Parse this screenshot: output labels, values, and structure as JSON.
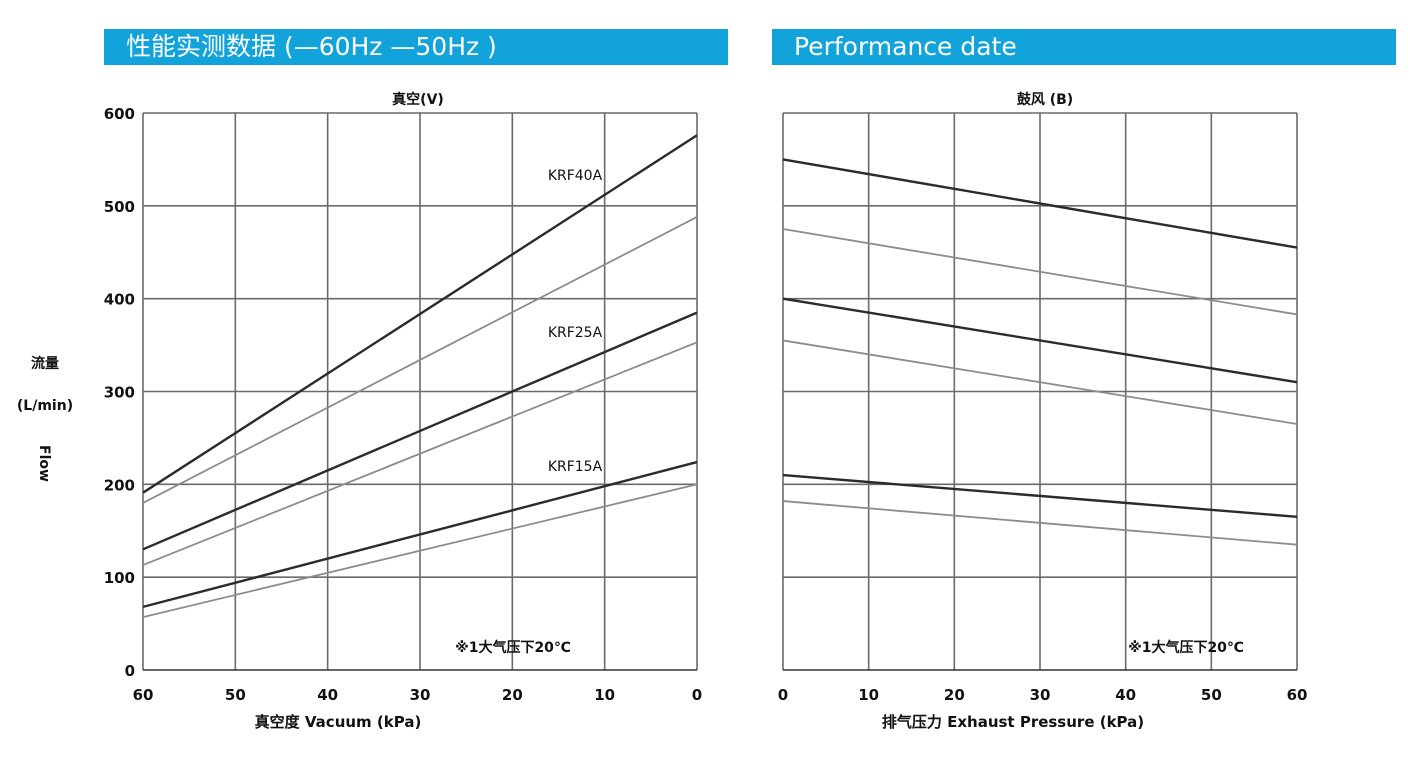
{
  "headers": {
    "left": "性能实测数据 (—60Hz —50Hz )",
    "right": "Performance date"
  },
  "chart_data": [
    {
      "type": "line",
      "title": "真空(V)",
      "xlabel": "真空度 Vacuum (kPa)",
      "ylabel_cn": "流量",
      "ylabel_unit": "(L/min)",
      "ylabel_en": "Flow",
      "x_ticks": [
        60,
        50,
        40,
        30,
        20,
        10,
        0
      ],
      "y_ticks": [
        0,
        100,
        200,
        300,
        400,
        500,
        600
      ],
      "xlim": [
        60,
        0
      ],
      "ylim": [
        0,
        600
      ],
      "grid": true,
      "note": "※1大气压下20℃",
      "series": [
        {
          "name": "KRF40A",
          "label": "KRF40A",
          "shade": "dark",
          "x": [
            60,
            0
          ],
          "y": [
            191,
            576
          ]
        },
        {
          "shade": "light",
          "x": [
            60,
            0
          ],
          "y": [
            180,
            488
          ]
        },
        {
          "name": "KRF25A",
          "label": "KRF25A",
          "shade": "dark",
          "x": [
            60,
            0
          ],
          "y": [
            130,
            385
          ]
        },
        {
          "shade": "light",
          "x": [
            60,
            0
          ],
          "y": [
            113,
            353
          ]
        },
        {
          "name": "KRF15A",
          "label": "KRF15A",
          "shade": "dark",
          "x": [
            60,
            0
          ],
          "y": [
            68,
            224
          ]
        },
        {
          "shade": "light",
          "x": [
            60,
            0
          ],
          "y": [
            57,
            200
          ]
        }
      ]
    },
    {
      "type": "line",
      "title": "鼓风 (B)",
      "xlabel": "排气压力 Exhaust Pressure (kPa)",
      "x_ticks": [
        0,
        10,
        20,
        30,
        40,
        50,
        60
      ],
      "y_ticks": [
        0,
        100,
        200,
        300,
        400,
        500,
        600
      ],
      "xlim": [
        0,
        60
      ],
      "ylim": [
        0,
        600
      ],
      "grid": true,
      "note": "※1大气压下20℃",
      "series": [
        {
          "shade": "dark",
          "x": [
            0,
            60
          ],
          "y": [
            550,
            455
          ]
        },
        {
          "shade": "light",
          "x": [
            0,
            60
          ],
          "y": [
            475,
            383
          ]
        },
        {
          "shade": "dark",
          "x": [
            0,
            60
          ],
          "y": [
            400,
            310
          ]
        },
        {
          "shade": "light",
          "x": [
            0,
            60
          ],
          "y": [
            355,
            265
          ]
        },
        {
          "shade": "dark",
          "x": [
            0,
            60
          ],
          "y": [
            210,
            165
          ]
        },
        {
          "shade": "light",
          "x": [
            0,
            60
          ],
          "y": [
            182,
            135
          ]
        }
      ]
    }
  ],
  "colors": {
    "banner": "#12a3db",
    "grid": "#6a6a6a",
    "dark_line": "#2b2b2b",
    "light_line": "#8c8c8c"
  }
}
